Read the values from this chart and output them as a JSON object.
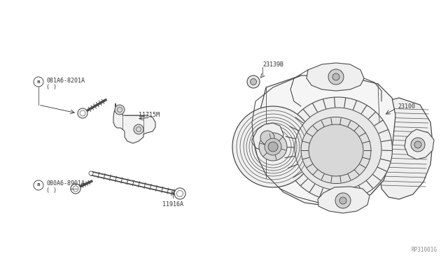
{
  "bg_color": "#ffffff",
  "line_color": "#4a4a4a",
  "text_color": "#333333",
  "fig_ref": "RP31001G",
  "fig_width": 6.4,
  "fig_height": 3.72,
  "dpi": 100,
  "labels": {
    "bolt_top_code": "081A6-8201A",
    "bolt_top_sub": "( )",
    "bracket_code": "11715M",
    "bolt_bot_code": "080A6-8901A",
    "bolt_bot_sub": "( )",
    "long_bolt_code": "11916A",
    "washer_code": "23139B",
    "alternator_code": "23100"
  }
}
